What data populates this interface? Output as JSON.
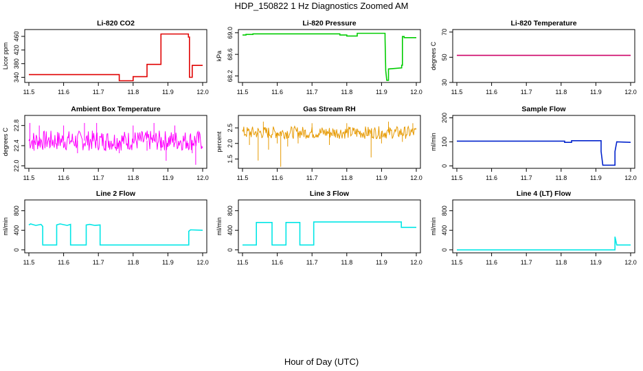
{
  "figure": {
    "title": "HDP_150822  1 Hz Diagnostics Zoomed AM",
    "xlabel": "Hour of Day (UTC)"
  },
  "chart_data": [
    {
      "id": "co2",
      "type": "line",
      "title": "Li-820 CO2",
      "xlabel": "",
      "ylabel": "Licor ppm",
      "xlim": [
        11.5,
        12.0
      ],
      "ylim": [
        325,
        480
      ],
      "xticks": [
        "11.5",
        "11.6",
        "11.7",
        "11.8",
        "11.9",
        "12.0"
      ],
      "yticks": [
        "340",
        "380",
        "420",
        "460"
      ],
      "color": "#e00000",
      "series": [
        {
          "x": [
            11.5,
            11.76,
            11.76,
            11.8,
            11.8,
            11.84,
            11.84,
            11.88,
            11.88,
            11.959,
            11.959,
            11.962,
            11.962,
            11.97,
            11.97,
            12.0
          ],
          "y": [
            348,
            348,
            330,
            330,
            342,
            342,
            378,
            378,
            467,
            467,
            458,
            458,
            340,
            340,
            375,
            375
          ]
        }
      ]
    },
    {
      "id": "pressure",
      "type": "line",
      "title": "Li-820 Pressure",
      "xlabel": "",
      "ylabel": "kPa",
      "xlim": [
        11.5,
        12.0
      ],
      "ylim": [
        68.08,
        69.06
      ],
      "xticks": [
        "11.5",
        "11.6",
        "11.7",
        "11.8",
        "11.9",
        "12.0"
      ],
      "yticks": [
        "68.2",
        "68.6",
        "69.0"
      ],
      "color": "#00cc00",
      "series": [
        {
          "x": [
            11.5,
            11.51,
            11.51,
            11.53,
            11.53,
            11.78,
            11.78,
            11.8,
            11.8,
            11.83,
            11.83,
            11.91,
            11.91,
            11.912,
            11.915,
            11.92,
            11.92,
            11.958,
            11.958,
            11.96,
            11.96,
            11.965,
            11.965,
            12.0
          ],
          "y": [
            68.96,
            68.96,
            68.97,
            68.97,
            68.98,
            68.98,
            68.96,
            68.96,
            68.94,
            68.94,
            68.99,
            68.99,
            68.9,
            68.3,
            68.12,
            68.12,
            68.33,
            68.35,
            68.4,
            68.4,
            68.93,
            68.93,
            68.91,
            68.91
          ]
        }
      ]
    },
    {
      "id": "temperature",
      "type": "line",
      "title": "Li-820 Temperature",
      "xlabel": "",
      "ylabel": "degrees C",
      "xlim": [
        11.5,
        12.0
      ],
      "ylim": [
        30,
        72
      ],
      "xticks": [
        "11.5",
        "11.6",
        "11.7",
        "11.8",
        "11.9",
        "12.0"
      ],
      "yticks": [
        "30",
        "50",
        "70"
      ],
      "color": "#cc0066",
      "series": [
        {
          "x": [
            11.5,
            12.0
          ],
          "y": [
            51.5,
            51.5
          ]
        }
      ]
    },
    {
      "id": "ambient",
      "type": "line",
      "title": "Ambient Box Temperature",
      "xlabel": "",
      "ylabel": "degrees C",
      "xlim": [
        11.5,
        12.0
      ],
      "ylim": [
        21.95,
        23.0
      ],
      "xticks": [
        "11.5",
        "11.6",
        "11.7",
        "11.8",
        "11.9",
        "12.0"
      ],
      "yticks": [
        "22.0",
        "22.4",
        "22.8"
      ],
      "color": "#ff00ff",
      "series": [
        {
          "band": true,
          "x": [
            11.5,
            12.0
          ],
          "y_low": 22.3,
          "y_high": 22.7,
          "y_mean": 22.5,
          "spikes": [
            [
              11.503,
              22.85
            ],
            [
              11.515,
              22.3
            ],
            [
              11.53,
              22.8
            ],
            [
              11.56,
              22.35
            ],
            [
              11.6,
              22.8
            ],
            [
              11.64,
              22.25
            ],
            [
              11.66,
              22.85
            ],
            [
              11.695,
              22.85
            ],
            [
              11.72,
              22.3
            ],
            [
              11.76,
              22.25
            ],
            [
              11.8,
              22.8
            ],
            [
              11.84,
              22.3
            ],
            [
              11.86,
              22.85
            ],
            [
              11.88,
              22.3
            ],
            [
              11.895,
              22.1
            ],
            [
              11.92,
              22.8
            ],
            [
              11.955,
              22.35
            ],
            [
              11.97,
              22.25
            ],
            [
              11.98,
              22.02
            ]
          ]
        }
      ]
    },
    {
      "id": "rh",
      "type": "line",
      "title": "Gas Stream RH",
      "xlabel": "",
      "ylabel": "percent",
      "xlim": [
        11.5,
        12.0
      ],
      "ylim": [
        1.2,
        2.9
      ],
      "xticks": [
        "11.5",
        "11.6",
        "11.7",
        "11.8",
        "11.9",
        "12.0"
      ],
      "yticks": [
        "1.5",
        "2.0",
        "2.5"
      ],
      "color": "#e69900",
      "series": [
        {
          "band": true,
          "x": [
            11.5,
            12.0
          ],
          "y_low": 2.15,
          "y_high": 2.55,
          "y_mean": 2.35,
          "spikes": [
            [
              11.52,
              1.95
            ],
            [
              11.545,
              1.45
            ],
            [
              11.56,
              2.7
            ],
            [
              11.575,
              1.8
            ],
            [
              11.6,
              2.0
            ],
            [
              11.61,
              1.25
            ],
            [
              11.63,
              1.9
            ],
            [
              11.66,
              2.0
            ],
            [
              11.7,
              2.65
            ],
            [
              11.75,
              1.95
            ],
            [
              11.8,
              2.65
            ],
            [
              11.87,
              1.55
            ],
            [
              11.9,
              2.0
            ],
            [
              11.92,
              2.7
            ],
            [
              11.96,
              2.05
            ],
            [
              11.99,
              2.65
            ]
          ]
        }
      ]
    },
    {
      "id": "sample_flow",
      "type": "line",
      "title": "Sample Flow",
      "xlabel": "",
      "ylabel": "ml/min",
      "xlim": [
        11.5,
        12.0
      ],
      "ylim": [
        -10,
        210
      ],
      "xticks": [
        "11.5",
        "11.6",
        "11.7",
        "11.8",
        "11.9",
        "12.0"
      ],
      "yticks": [
        "0",
        "100",
        "200"
      ],
      "color": "#0022cc",
      "series": [
        {
          "x": [
            11.5,
            11.81,
            11.81,
            11.83,
            11.83,
            11.915,
            11.915,
            11.92,
            11.92,
            11.955,
            11.955,
            11.96,
            11.96,
            12.0
          ],
          "y": [
            103,
            103,
            98,
            98,
            105,
            105,
            60,
            3,
            3,
            3,
            60,
            100,
            100,
            98
          ]
        }
      ]
    },
    {
      "id": "line2",
      "type": "line",
      "title": "Line 2 Flow",
      "xlabel": "",
      "ylabel": "ml/min",
      "xlim": [
        11.5,
        12.0
      ],
      "ylim": [
        -60,
        1020
      ],
      "xticks": [
        "11.5",
        "11.6",
        "11.7",
        "11.8",
        "11.9",
        "12.0"
      ],
      "yticks": [
        "0",
        "400",
        "800"
      ],
      "color": "#00e6e6",
      "series": [
        {
          "x": [
            11.5,
            11.505,
            11.52,
            11.535,
            11.54,
            11.54,
            11.58,
            11.58,
            11.59,
            11.61,
            11.62,
            11.62,
            11.665,
            11.665,
            11.675,
            11.69,
            11.705,
            11.705,
            11.96,
            11.96,
            11.965,
            12.0
          ],
          "y": [
            510,
            530,
            500,
            520,
            480,
            100,
            100,
            510,
            530,
            500,
            520,
            100,
            100,
            510,
            520,
            500,
            510,
            100,
            100,
            380,
            410,
            400
          ]
        }
      ]
    },
    {
      "id": "line3",
      "type": "line",
      "title": "Line 3 Flow",
      "xlabel": "",
      "ylabel": "ml/min",
      "xlim": [
        11.5,
        12.0
      ],
      "ylim": [
        -60,
        1020
      ],
      "xticks": [
        "11.5",
        "11.6",
        "11.7",
        "11.8",
        "11.9",
        "12.0"
      ],
      "yticks": [
        "0",
        "400",
        "800"
      ],
      "color": "#00e6e6",
      "series": [
        {
          "x": [
            11.5,
            11.54,
            11.54,
            11.585,
            11.585,
            11.625,
            11.625,
            11.665,
            11.665,
            11.705,
            11.705,
            11.957,
            11.957,
            12.0
          ],
          "y": [
            100,
            100,
            560,
            560,
            100,
            100,
            560,
            560,
            100,
            100,
            570,
            570,
            460,
            460
          ]
        }
      ]
    },
    {
      "id": "line4",
      "type": "line",
      "title": "Line 4 (LT) Flow",
      "xlabel": "",
      "ylabel": "ml/min",
      "xlim": [
        11.5,
        12.0
      ],
      "ylim": [
        -60,
        1020
      ],
      "xticks": [
        "11.5",
        "11.6",
        "11.7",
        "11.8",
        "11.9",
        "12.0"
      ],
      "yticks": [
        "0",
        "400",
        "800"
      ],
      "color": "#00e6e6",
      "series": [
        {
          "x": [
            11.5,
            11.955,
            11.955,
            11.96,
            11.96,
            12.0
          ],
          "y": [
            0,
            0,
            270,
            100,
            100,
            100
          ]
        }
      ]
    }
  ]
}
